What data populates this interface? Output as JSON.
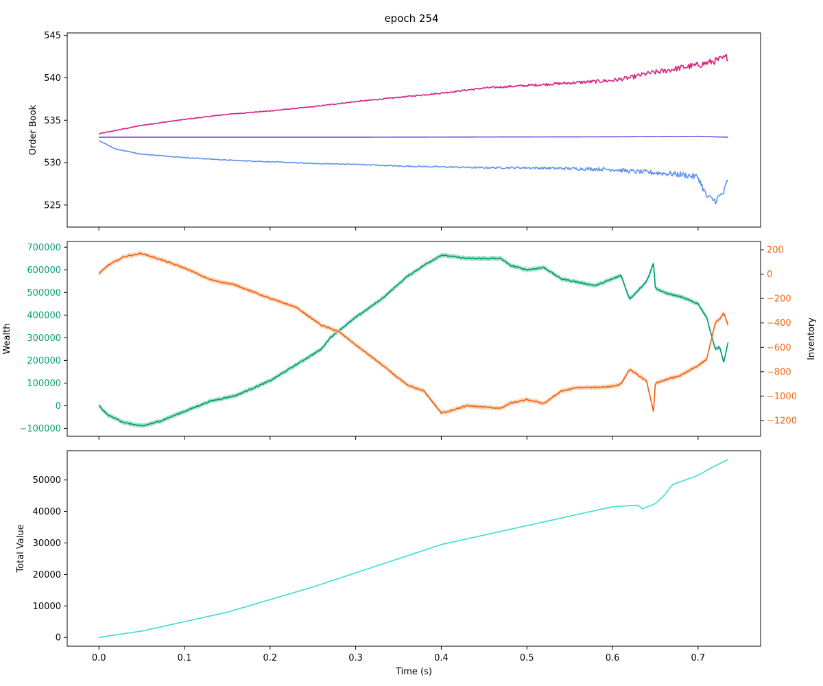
{
  "figure": {
    "title": "epoch 254"
  },
  "chart_data": [
    {
      "type": "line",
      "panel": "order-book",
      "ylabel": "Order Book",
      "xlim": [
        -0.037,
        0.773
      ],
      "ylim": [
        522.4,
        545.3
      ],
      "x_ticks": [
        0.0,
        0.1,
        0.2,
        0.3,
        0.4,
        0.5,
        0.6,
        0.7
      ],
      "y_ticks": [
        525,
        530,
        535,
        540,
        545
      ],
      "grid": false,
      "series": [
        {
          "key": "ask",
          "color": "#d62783",
          "noisy": true,
          "points": [
            [
              0.0,
              533.4
            ],
            [
              0.02,
              533.8
            ],
            [
              0.05,
              534.4
            ],
            [
              0.1,
              535.1
            ],
            [
              0.15,
              535.7
            ],
            [
              0.2,
              536.1
            ],
            [
              0.25,
              536.6
            ],
            [
              0.3,
              537.2
            ],
            [
              0.35,
              537.7
            ],
            [
              0.4,
              538.2
            ],
            [
              0.45,
              538.8
            ],
            [
              0.5,
              539.1
            ],
            [
              0.55,
              539.4
            ],
            [
              0.6,
              539.7
            ],
            [
              0.62,
              540.0
            ],
            [
              0.64,
              540.5
            ],
            [
              0.66,
              540.8
            ],
            [
              0.68,
              541.2
            ],
            [
              0.7,
              541.5
            ],
            [
              0.72,
              542.0
            ],
            [
              0.73,
              542.3
            ],
            [
              0.735,
              542.5
            ]
          ]
        },
        {
          "key": "mid",
          "color": "#7b5ce6",
          "noisy": false,
          "points": [
            [
              0.0,
              533.0
            ],
            [
              0.3,
              533.0
            ],
            [
              0.6,
              533.05
            ],
            [
              0.7,
              533.1
            ],
            [
              0.735,
              533.0
            ]
          ]
        },
        {
          "key": "bid",
          "color": "#6495ed",
          "noisy": true,
          "points": [
            [
              0.0,
              532.6
            ],
            [
              0.02,
              531.6
            ],
            [
              0.05,
              531.0
            ],
            [
              0.1,
              530.6
            ],
            [
              0.15,
              530.3
            ],
            [
              0.2,
              530.1
            ],
            [
              0.25,
              529.9
            ],
            [
              0.3,
              529.8
            ],
            [
              0.35,
              529.6
            ],
            [
              0.4,
              529.5
            ],
            [
              0.45,
              529.4
            ],
            [
              0.5,
              529.4
            ],
            [
              0.55,
              529.3
            ],
            [
              0.6,
              529.2
            ],
            [
              0.62,
              529.0
            ],
            [
              0.65,
              528.8
            ],
            [
              0.68,
              528.6
            ],
            [
              0.7,
              528.3
            ],
            [
              0.71,
              526.0
            ],
            [
              0.72,
              525.5
            ],
            [
              0.73,
              526.5
            ],
            [
              0.735,
              528.0
            ]
          ]
        }
      ]
    },
    {
      "type": "line",
      "panel": "wealth-inventory",
      "ylabel": "Wealth",
      "y2label": "Inventory",
      "xlim": [
        -0.037,
        0.773
      ],
      "ylim": [
        -135000,
        725000
      ],
      "y2lim": [
        -1330,
        268
      ],
      "x_ticks": [
        0.0,
        0.1,
        0.2,
        0.3,
        0.4,
        0.5,
        0.6,
        0.7
      ],
      "y_ticks": [
        -100000,
        0,
        100000,
        200000,
        300000,
        400000,
        500000,
        600000,
        700000
      ],
      "y2_ticks": [
        -1200,
        -1000,
        -800,
        -600,
        -400,
        -200,
        0,
        200
      ],
      "grid": false,
      "series": [
        {
          "key": "wealth",
          "axis": "left",
          "color": "#009e73",
          "band_color": "#8fd3b8",
          "noisy": true,
          "points": [
            [
              0.0,
              0
            ],
            [
              0.01,
              -40000
            ],
            [
              0.03,
              -75000
            ],
            [
              0.05,
              -90000
            ],
            [
              0.07,
              -70000
            ],
            [
              0.1,
              -25000
            ],
            [
              0.13,
              20000
            ],
            [
              0.16,
              45000
            ],
            [
              0.2,
              110000
            ],
            [
              0.23,
              180000
            ],
            [
              0.26,
              250000
            ],
            [
              0.27,
              300000
            ],
            [
              0.3,
              390000
            ],
            [
              0.33,
              470000
            ],
            [
              0.36,
              570000
            ],
            [
              0.38,
              620000
            ],
            [
              0.4,
              665000
            ],
            [
              0.43,
              650000
            ],
            [
              0.47,
              650000
            ],
            [
              0.48,
              620000
            ],
            [
              0.5,
              600000
            ],
            [
              0.52,
              610000
            ],
            [
              0.54,
              560000
            ],
            [
              0.56,
              545000
            ],
            [
              0.58,
              530000
            ],
            [
              0.6,
              560000
            ],
            [
              0.61,
              575000
            ],
            [
              0.62,
              470000
            ],
            [
              0.64,
              550000
            ],
            [
              0.648,
              630000
            ],
            [
              0.65,
              520000
            ],
            [
              0.66,
              500000
            ],
            [
              0.68,
              480000
            ],
            [
              0.7,
              450000
            ],
            [
              0.71,
              390000
            ],
            [
              0.72,
              250000
            ],
            [
              0.725,
              260000
            ],
            [
              0.73,
              190000
            ],
            [
              0.735,
              280000
            ]
          ]
        },
        {
          "key": "inventory",
          "axis": "right",
          "color": "#f26511",
          "band_color": "#f8c4a1",
          "noisy": true,
          "points": [
            [
              0.0,
              0
            ],
            [
              0.01,
              70000
            ],
            [
              0.03,
              145000
            ],
            [
              0.05,
              170000
            ],
            [
              0.07,
              125000
            ],
            [
              0.1,
              50000
            ],
            [
              0.13,
              -45000
            ],
            [
              0.16,
              -90000
            ],
            [
              0.2,
              -200000
            ],
            [
              0.23,
              -270000
            ],
            [
              0.26,
              -420000
            ],
            [
              0.28,
              -470000
            ],
            [
              0.3,
              -580000
            ],
            [
              0.33,
              -740000
            ],
            [
              0.36,
              -910000
            ],
            [
              0.38,
              -960000
            ],
            [
              0.4,
              -1140000
            ],
            [
              0.43,
              -1080000
            ],
            [
              0.47,
              -1100000
            ],
            [
              0.48,
              -1060000
            ],
            [
              0.5,
              -1030000
            ],
            [
              0.52,
              -1060000
            ],
            [
              0.54,
              -960000
            ],
            [
              0.56,
              -930000
            ],
            [
              0.58,
              -930000
            ],
            [
              0.6,
              -920000
            ],
            [
              0.61,
              -900000
            ],
            [
              0.62,
              -780000
            ],
            [
              0.64,
              -880000
            ],
            [
              0.648,
              -1130000
            ],
            [
              0.65,
              -900000
            ],
            [
              0.66,
              -870000
            ],
            [
              0.68,
              -830000
            ],
            [
              0.7,
              -750000
            ],
            [
              0.71,
              -700000
            ],
            [
              0.72,
              -400000
            ],
            [
              0.725,
              -370000
            ],
            [
              0.73,
              -320000
            ],
            [
              0.735,
              -420000
            ]
          ],
          "points_unit": "milli"
        }
      ]
    },
    {
      "type": "line",
      "panel": "total-value",
      "ylabel": "Total Value",
      "xlabel": "Time (s)",
      "xlim": [
        -0.037,
        0.773
      ],
      "ylim": [
        -2800,
        59300
      ],
      "x_ticks": [
        0.0,
        0.1,
        0.2,
        0.3,
        0.4,
        0.5,
        0.6,
        0.7
      ],
      "y_ticks": [
        0,
        10000,
        20000,
        30000,
        40000,
        50000
      ],
      "grid": false,
      "series": [
        {
          "key": "total",
          "color": "#40e0d0",
          "noisy": false,
          "points": [
            [
              0.0,
              0
            ],
            [
              0.05,
              2000
            ],
            [
              0.1,
              5000
            ],
            [
              0.15,
              8000
            ],
            [
              0.2,
              12000
            ],
            [
              0.25,
              16000
            ],
            [
              0.3,
              20500
            ],
            [
              0.35,
              25000
            ],
            [
              0.4,
              29500
            ],
            [
              0.45,
              32500
            ],
            [
              0.5,
              35500
            ],
            [
              0.55,
              38500
            ],
            [
              0.6,
              41500
            ],
            [
              0.63,
              42000
            ],
            [
              0.635,
              40800
            ],
            [
              0.65,
              42500
            ],
            [
              0.66,
              45000
            ],
            [
              0.67,
              48500
            ],
            [
              0.7,
              51500
            ],
            [
              0.72,
              54500
            ],
            [
              0.735,
              56500
            ]
          ]
        }
      ]
    }
  ]
}
